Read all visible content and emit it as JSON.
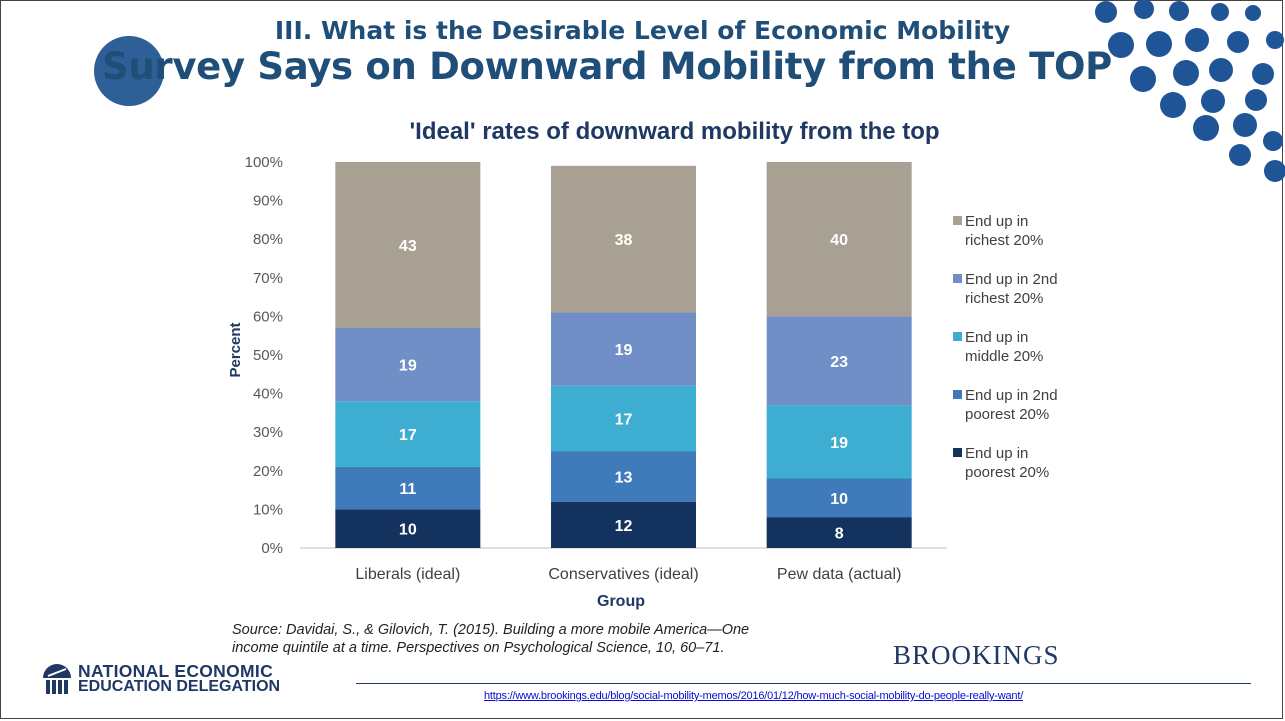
{
  "slide": {
    "supertitle": "III. What is the Desirable Level of Economic Mobility",
    "title": "Survey Says on Downward Mobility from the TOP",
    "source_line1": "Source: Davidai, S., & Gilovich, T. (2015). Building a more mobile America—One",
    "source_line2": "income quintile at a time. Perspectives on Psychological Science, 10, 60–71.",
    "brand": "BROOKINGS",
    "org_line1": "NATIONAL ECONOMIC",
    "org_line2": "EDUCATION DELEGATION",
    "url": "https://www.brookings.edu/blog/social-mobility-memos/2016/01/12/how-much-social-mobility-do-people-really-want/"
  },
  "colors": {
    "title_blue": "#1f4e79",
    "accent_blue": "#2e5f97",
    "dot_blue": "#1f5597"
  },
  "chart_data": {
    "type": "bar",
    "stacked": true,
    "title": "'Ideal' rates of downward mobility from the top",
    "xlabel": "Group",
    "ylabel": "Percent",
    "ylim": [
      0,
      100
    ],
    "yticks": [
      "0%",
      "10%",
      "20%",
      "30%",
      "40%",
      "50%",
      "60%",
      "70%",
      "80%",
      "90%",
      "100%"
    ],
    "categories": [
      "Liberals (ideal)",
      "Conservatives (ideal)",
      "Pew data (actual)"
    ],
    "legend_position": "right",
    "series": [
      {
        "name": "End up in poorest 20%",
        "legend_lines": [
          "End up in",
          "poorest 20%"
        ],
        "color": "#14325e",
        "values": [
          10,
          12,
          8
        ]
      },
      {
        "name": "End up in 2nd poorest 20%",
        "legend_lines": [
          "End up in 2nd",
          "poorest 20%"
        ],
        "color": "#3f7abb",
        "values": [
          11,
          13,
          10
        ]
      },
      {
        "name": "End up in middle 20%",
        "legend_lines": [
          "End up in",
          "middle 20%"
        ],
        "color": "#3dadd1",
        "values": [
          17,
          17,
          19
        ]
      },
      {
        "name": "End up in 2nd richest 20%",
        "legend_lines": [
          "End up in 2nd",
          "richest 20%"
        ],
        "color": "#718fc7",
        "values": [
          19,
          19,
          23
        ]
      },
      {
        "name": "End up in richest 20%",
        "legend_lines": [
          "End up in",
          "richest 20%"
        ],
        "color": "#a8a092",
        "values": [
          43,
          38,
          40
        ]
      }
    ],
    "label_positions_pct": [
      [
        10,
        12,
        8
      ],
      [
        21,
        25.6,
        18
      ],
      [
        38,
        43.2,
        37
      ],
      [
        57.2,
        62,
        60
      ],
      [
        100,
        100,
        100
      ]
    ]
  }
}
